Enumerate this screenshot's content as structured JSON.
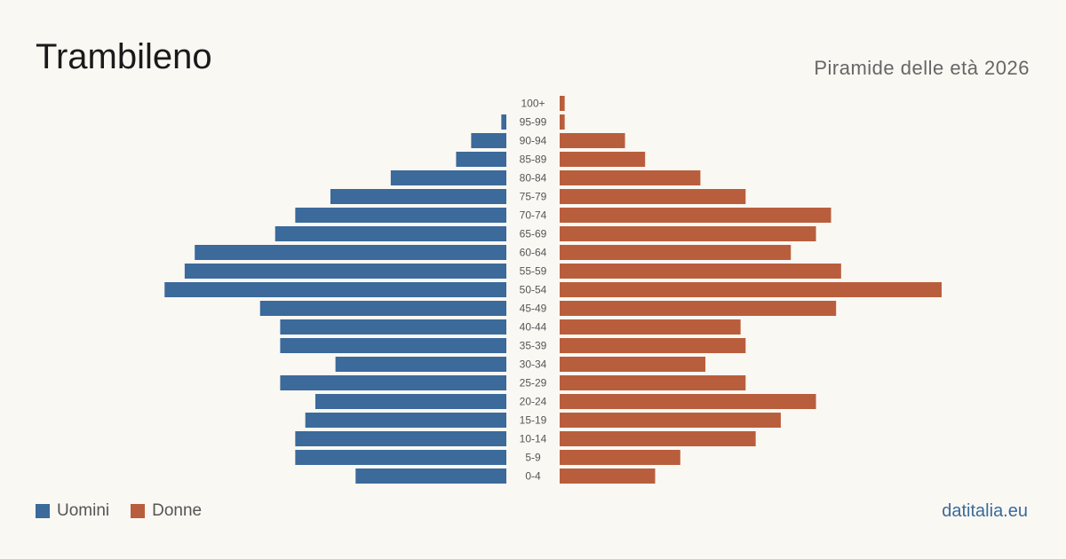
{
  "title": "Trambileno",
  "subtitle": "Piramide delle età 2026",
  "brand": "datitalia.eu",
  "colors": {
    "men": "#3b6a9b",
    "women": "#b95e3c"
  },
  "legend": {
    "men_label": "Uomini",
    "women_label": "Donne"
  },
  "chart_data": {
    "type": "bar",
    "orientation": "horizontal-pyramid",
    "categories": [
      "100+",
      "95-99",
      "90-94",
      "85-89",
      "80-84",
      "75-79",
      "70-74",
      "65-69",
      "60-64",
      "55-59",
      "50-54",
      "45-49",
      "40-44",
      "35-39",
      "30-34",
      "25-29",
      "20-24",
      "15-19",
      "10-14",
      "5-9",
      "0-4"
    ],
    "series": [
      {
        "name": "Uomini",
        "values": [
          0,
          1,
          7,
          10,
          23,
          35,
          42,
          46,
          62,
          64,
          68,
          49,
          45,
          45,
          34,
          45,
          38,
          40,
          42,
          42,
          30
        ]
      },
      {
        "name": "Donne",
        "values": [
          1,
          1,
          13,
          17,
          28,
          37,
          54,
          51,
          46,
          56,
          76,
          55,
          36,
          37,
          29,
          37,
          51,
          44,
          39,
          24,
          19
        ]
      }
    ],
    "xlim": [
      0,
      76
    ],
    "grid": false,
    "legend_position": "bottom-left"
  }
}
